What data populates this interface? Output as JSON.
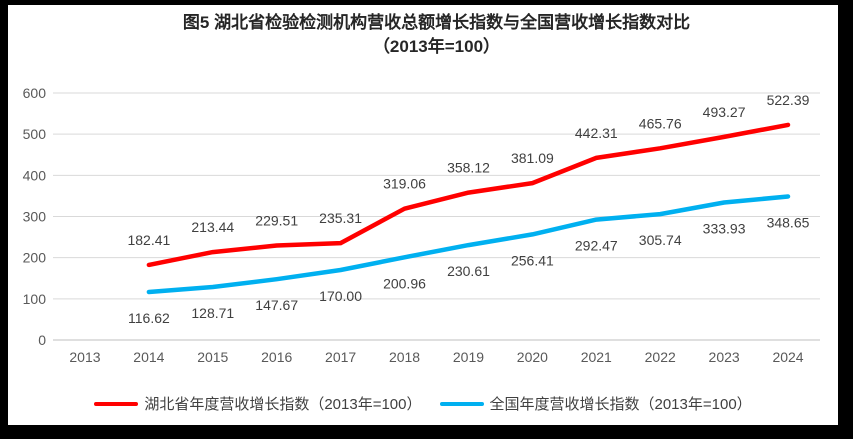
{
  "chart_data": {
    "type": "line",
    "title": "图5 湖北省检验检测机构营收总额增长指数与全国营收增长指数对比",
    "subtitle": "（2013年=100）",
    "categories": [
      "2013",
      "2014",
      "2015",
      "2016",
      "2017",
      "2018",
      "2019",
      "2020",
      "2021",
      "2022",
      "2023",
      "2024"
    ],
    "series": [
      {
        "name": "湖北省年度营收增长指数（2013年=100）",
        "color": "#FF0000",
        "start_category": "2014",
        "values": [
          182.41,
          213.44,
          229.51,
          235.31,
          319.06,
          358.12,
          381.09,
          442.31,
          465.76,
          493.27,
          522.39
        ],
        "labels": [
          "182.41",
          "213.44",
          "229.51",
          "235.31",
          "319.06",
          "358.12",
          "381.09",
          "442.31",
          "465.76",
          "493.27",
          "522.39"
        ],
        "label_position": "above"
      },
      {
        "name": "全国年度营收增长指数（2013年=100）",
        "color": "#00B0F0",
        "start_category": "2014",
        "values": [
          116.62,
          128.71,
          147.67,
          170.0,
          200.96,
          230.61,
          256.41,
          292.47,
          305.74,
          333.93,
          348.65
        ],
        "labels": [
          "116.62",
          "128.71",
          "147.67",
          "170.00",
          "200.96",
          "230.61",
          "256.41",
          "292.47",
          "305.74",
          "333.93",
          "348.65"
        ],
        "label_position": "below"
      }
    ],
    "ylim": [
      0,
      600
    ],
    "ytick_step": 100,
    "yticks": [
      "0",
      "100",
      "200",
      "300",
      "400",
      "500",
      "600"
    ],
    "grid": true,
    "legend_position": "bottom",
    "colors": {
      "gridline": "#D9D9D9",
      "axis_line": "#BFBFBF",
      "tick_label": "#595959",
      "data_label": "#404040",
      "title": "#262626"
    }
  }
}
